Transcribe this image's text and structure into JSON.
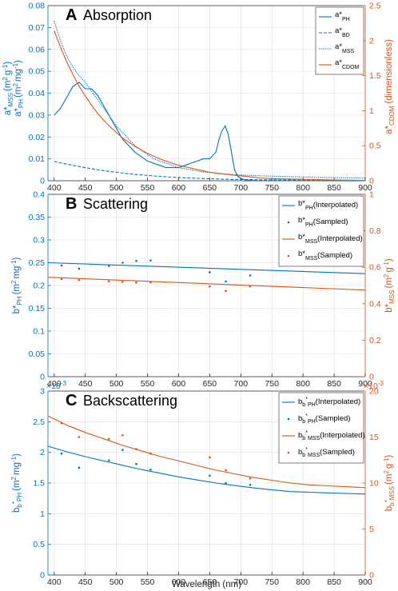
{
  "colors": {
    "left_axis": "#0072BD",
    "right_axis": "#D95319",
    "grid": "#dcdcdc",
    "axis": "#262626"
  },
  "chart_data": [
    {
      "type": "line",
      "panel_label": "A",
      "title": "Absorption",
      "x": [
        400,
        410,
        420,
        430,
        440,
        450,
        460,
        470,
        480,
        490,
        500,
        510,
        520,
        530,
        540,
        550,
        560,
        570,
        580,
        590,
        600,
        610,
        620,
        630,
        640,
        650,
        660,
        665,
        670,
        675,
        680,
        685,
        690,
        695,
        700,
        710,
        720,
        730,
        750,
        800,
        850,
        900
      ],
      "xlim": [
        390,
        900
      ],
      "xticks": [
        400,
        450,
        500,
        550,
        600,
        650,
        700,
        750,
        800,
        850,
        900
      ],
      "xtick_labels": [
        "400",
        "450",
        "500",
        "550",
        "600",
        "650",
        "700",
        "750",
        "800",
        "850",
        "900"
      ],
      "ylim_left": [
        0,
        0.08
      ],
      "yticks_left": [
        "0",
        "0.01",
        "0.02",
        "0.03",
        "0.04",
        "0.05",
        "0.06",
        "0.07",
        "0.08"
      ],
      "ylim_right": [
        0,
        2.5
      ],
      "yticks_right": [
        "0",
        "0.5",
        "1",
        "1.5",
        "2",
        "2.5"
      ],
      "ylabel_left_1": "a*",
      "ylabel_left_1_sub": "MSS",
      "ylabel_left_1_unit": "(m",
      "ylabel_left_1_unit2": "g",
      "ylabel_left_1_unit3": ")",
      "ylabel_left_2": "a*",
      "ylabel_left_2_sub": "PH",
      "ylabel_left_2_unit": "(m",
      "ylabel_left_2_unit2": "mg",
      "ylabel_left_2_unit3": ")",
      "ylabel_right": "a*",
      "ylabel_right_sub": "CDOM",
      "ylabel_right_unit": "(dimensionless)",
      "series": [
        {
          "name": "a*PH",
          "legend_main": "a*",
          "legend_sub": "PH",
          "axis": "left",
          "style": "solid",
          "values": [
            0.03,
            0.033,
            0.038,
            0.043,
            0.045,
            0.042,
            0.042,
            0.039,
            0.034,
            0.029,
            0.024,
            0.019,
            0.016,
            0.013,
            0.011,
            0.009,
            0.008,
            0.007,
            0.006,
            0.006,
            0.006,
            0.007,
            0.008,
            0.009,
            0.01,
            0.01,
            0.013,
            0.019,
            0.023,
            0.025,
            0.021,
            0.013,
            0.005,
            0.002,
            0.001,
            0.0003,
            0.0001,
            0,
            0,
            0,
            0,
            0
          ]
        },
        {
          "name": "a*BD",
          "legend_main": "a*",
          "legend_sub": "BD",
          "axis": "left",
          "style": "dashed",
          "values": [
            0.0088,
            0.0082,
            0.0076,
            0.007,
            0.0065,
            0.006,
            0.0055,
            0.005,
            0.0046,
            0.0042,
            0.0039,
            0.0035,
            0.0032,
            0.0029,
            0.0027,
            0.0024,
            0.0022,
            0.002,
            0.0018,
            0.0016,
            0.0015,
            0.0013,
            0.0012,
            0.0011,
            0.001,
            0.0009,
            0.0008,
            0.0008,
            0.0007,
            0.0007,
            0.0007,
            0.0006,
            0.0006,
            0.0006,
            0.0006,
            0.0005,
            0.0005,
            0.0004,
            0.0004,
            0.0003,
            0.0002,
            0.0002
          ]
        },
        {
          "name": "a*MSS",
          "legend_main": "a*",
          "legend_sub": "MSS",
          "axis": "left",
          "style": "dotted",
          "values": [
            0.073,
            0.064,
            0.057,
            0.052,
            0.048,
            0.045,
            0.041,
            0.037,
            0.033,
            0.029,
            0.025,
            0.022,
            0.019,
            0.016,
            0.014,
            0.012,
            0.01,
            0.009,
            0.008,
            0.007,
            0.006,
            0.0055,
            0.005,
            0.0045,
            0.004,
            0.0038,
            0.0035,
            0.0034,
            0.0032,
            0.0031,
            0.003,
            0.0029,
            0.0028,
            0.0027,
            0.0026,
            0.0025,
            0.0024,
            0.0023,
            0.0021,
            0.0017,
            0.0014,
            0.0012
          ]
        },
        {
          "name": "a*CDOM",
          "legend_main": "a*",
          "legend_sub": "CDOM",
          "axis": "right",
          "style": "solid",
          "values": [
            2.14,
            1.91,
            1.7,
            1.52,
            1.35,
            1.21,
            1.08,
            0.96,
            0.86,
            0.77,
            0.69,
            0.61,
            0.55,
            0.49,
            0.44,
            0.39,
            0.35,
            0.31,
            0.28,
            0.25,
            0.22,
            0.2,
            0.18,
            0.16,
            0.14,
            0.12,
            0.11,
            0.1,
            0.1,
            0.09,
            0.09,
            0.08,
            0.08,
            0.07,
            0.07,
            0.06,
            0.05,
            0.04,
            0.03,
            0.02,
            0.01,
            0.005
          ]
        }
      ]
    },
    {
      "type": "line",
      "panel_label": "B",
      "title": "Scattering",
      "xlim": [
        390,
        900
      ],
      "xticks": [
        400,
        450,
        500,
        550,
        600,
        650,
        700,
        750,
        800,
        850,
        900
      ],
      "xtick_labels": [
        "400",
        "450",
        "500",
        "550",
        "600",
        "650",
        "700",
        "750",
        "800",
        "850",
        "900"
      ],
      "ylim_left": [
        0,
        0.4
      ],
      "yticks_left": [
        "0",
        "0.05",
        "0.1",
        "0.15",
        "0.2",
        "0.25",
        "0.3",
        "0.35",
        "0.4"
      ],
      "ylim_right": [
        0,
        1
      ],
      "yticks_right": [
        "0",
        "0.2",
        "0.4",
        "0.6",
        "0.8",
        "1"
      ],
      "ylabel_left": "b*",
      "ylabel_left_sub": "PH",
      "ylabel_left_unit": "(m",
      "ylabel_left_unit2": "mg",
      "ylabel_left_unit3": ")",
      "ylabel_right": "b*",
      "ylabel_right_sub": "MSS",
      "ylabel_right_unit": "(m",
      "ylabel_right_unit2": "g",
      "ylabel_right_unit3": ")",
      "series": [
        {
          "name": "b*PH(Interpolated)",
          "legend_main": "b*",
          "legend_sub": "PH",
          "legend_suffix": "(Interpolated)",
          "axis": "left",
          "style": "line",
          "x": [
            390,
            900
          ],
          "values": [
            0.25,
            0.226
          ]
        },
        {
          "name": "b*PH(Sampled)",
          "legend_main": "b*",
          "legend_sub": "PH",
          "legend_suffix": "(Sampled)",
          "axis": "left",
          "style": "points",
          "x": [
            412,
            440,
            488,
            510,
            532,
            555,
            650,
            676,
            715
          ],
          "values": [
            0.244,
            0.237,
            0.243,
            0.25,
            0.254,
            0.255,
            0.229,
            0.209,
            0.222
          ]
        },
        {
          "name": "b*MSS(Interpolated)",
          "legend_main": "b*",
          "legend_sub": "MSS",
          "legend_suffix": "(Interpolated)",
          "axis": "right",
          "style": "line",
          "x": [
            390,
            900
          ],
          "values": [
            0.545,
            0.475
          ]
        },
        {
          "name": "b*MSS(Sampled)",
          "legend_main": "b*",
          "legend_sub": "MSS",
          "legend_suffix": "(Sampled)",
          "axis": "right",
          "style": "points",
          "x": [
            412,
            440,
            488,
            510,
            532,
            555,
            650,
            676,
            715
          ],
          "values": [
            0.535,
            0.53,
            0.523,
            0.52,
            0.516,
            0.517,
            0.495,
            0.47,
            0.495
          ]
        }
      ]
    },
    {
      "type": "line",
      "panel_label": "C",
      "title": "Backscattering",
      "xlim": [
        390,
        900
      ],
      "xticks": [
        400,
        450,
        500,
        550,
        600,
        650,
        700,
        750,
        800,
        850,
        900
      ],
      "xtick_labels": [
        "400",
        "450",
        "500",
        "550",
        "600",
        "650",
        "700",
        "750",
        "800",
        "850",
        "900"
      ],
      "xlabel": "Wavelength (nm)",
      "ylim_left": [
        0,
        0.003
      ],
      "yticks_left": [
        "0",
        "0.5",
        "1",
        "1.5",
        "2",
        "2.5",
        "3"
      ],
      "left_exponent_base": "×10",
      "left_exponent_power": "-3",
      "ylim_right": [
        0,
        0.02
      ],
      "yticks_right": [
        "0",
        "5",
        "10",
        "15",
        "20"
      ],
      "right_exponent_base": "×10",
      "right_exponent_power": "-3",
      "ylabel_left": "b",
      "ylabel_left_sub1": "b",
      "ylabel_left_star": "*",
      "ylabel_left_sub2": "PH",
      "ylabel_left_unit": "(m",
      "ylabel_left_unit2": "mg",
      "ylabel_left_unit3": ")",
      "ylabel_right": "b",
      "ylabel_right_sub1": "b",
      "ylabel_right_star": "*",
      "ylabel_right_sub2": "MSS",
      "ylabel_right_unit": "(m",
      "ylabel_right_unit2": "g",
      "ylabel_right_unit3": ")",
      "series": [
        {
          "name": "bb*PH(Interpolated)",
          "legend_main": "b",
          "legend_sub1": "b",
          "legend_star": "*",
          "legend_sub2": "PH",
          "legend_suffix": "(Interpolated)",
          "axis": "left",
          "style": "line",
          "x": [
            390,
            420,
            450,
            480,
            510,
            540,
            570,
            600,
            630,
            660,
            690,
            720,
            750,
            780,
            810,
            840,
            870,
            900
          ],
          "values": [
            0.0021,
            0.00201,
            0.00193,
            0.00186,
            0.00179,
            0.00172,
            0.00166,
            0.0016,
            0.00155,
            0.0015,
            0.00146,
            0.00142,
            0.00139,
            0.00136,
            0.00135,
            0.00134,
            0.00133,
            0.00132
          ]
        },
        {
          "name": "bb*PH(Sampled)",
          "legend_main": "b",
          "legend_sub1": "b",
          "legend_star": "*",
          "legend_sub2": "PH",
          "legend_suffix": "(Sampled)",
          "axis": "left",
          "style": "points",
          "x": [
            412,
            440,
            488,
            510,
            532,
            555,
            650,
            676,
            715
          ],
          "values": [
            0.00198,
            0.00175,
            0.00187,
            0.00204,
            0.00181,
            0.00172,
            0.00162,
            0.0015,
            0.00147
          ]
        },
        {
          "name": "bb*MSS(Interpolated)",
          "legend_main": "b",
          "legend_sub1": "b",
          "legend_star": "*",
          "legend_sub2": "MSS",
          "legend_suffix": "(Interpolated)",
          "axis": "right",
          "style": "line",
          "x": [
            390,
            420,
            450,
            480,
            510,
            540,
            570,
            600,
            630,
            660,
            690,
            720,
            750,
            780,
            810,
            840,
            870,
            900
          ],
          "values": [
            0.0173,
            0.0163,
            0.0155,
            0.0148,
            0.0141,
            0.0135,
            0.0129,
            0.0124,
            0.0119,
            0.0114,
            0.011,
            0.0106,
            0.0103,
            0.01,
            0.0098,
            0.0097,
            0.0096,
            0.0095
          ]
        },
        {
          "name": "bb*MSS(Sampled)",
          "legend_main": "b",
          "legend_sub1": "b",
          "legend_star": "*",
          "legend_sub2": "MSS",
          "legend_suffix": "(Sampled)",
          "axis": "right",
          "style": "points",
          "x": [
            412,
            440,
            488,
            510,
            532,
            555,
            650,
            676,
            715
          ],
          "values": [
            0.0165,
            0.015,
            0.0148,
            0.0152,
            0.0137,
            0.0132,
            0.0128,
            0.0114,
            0.0105
          ]
        }
      ]
    }
  ]
}
